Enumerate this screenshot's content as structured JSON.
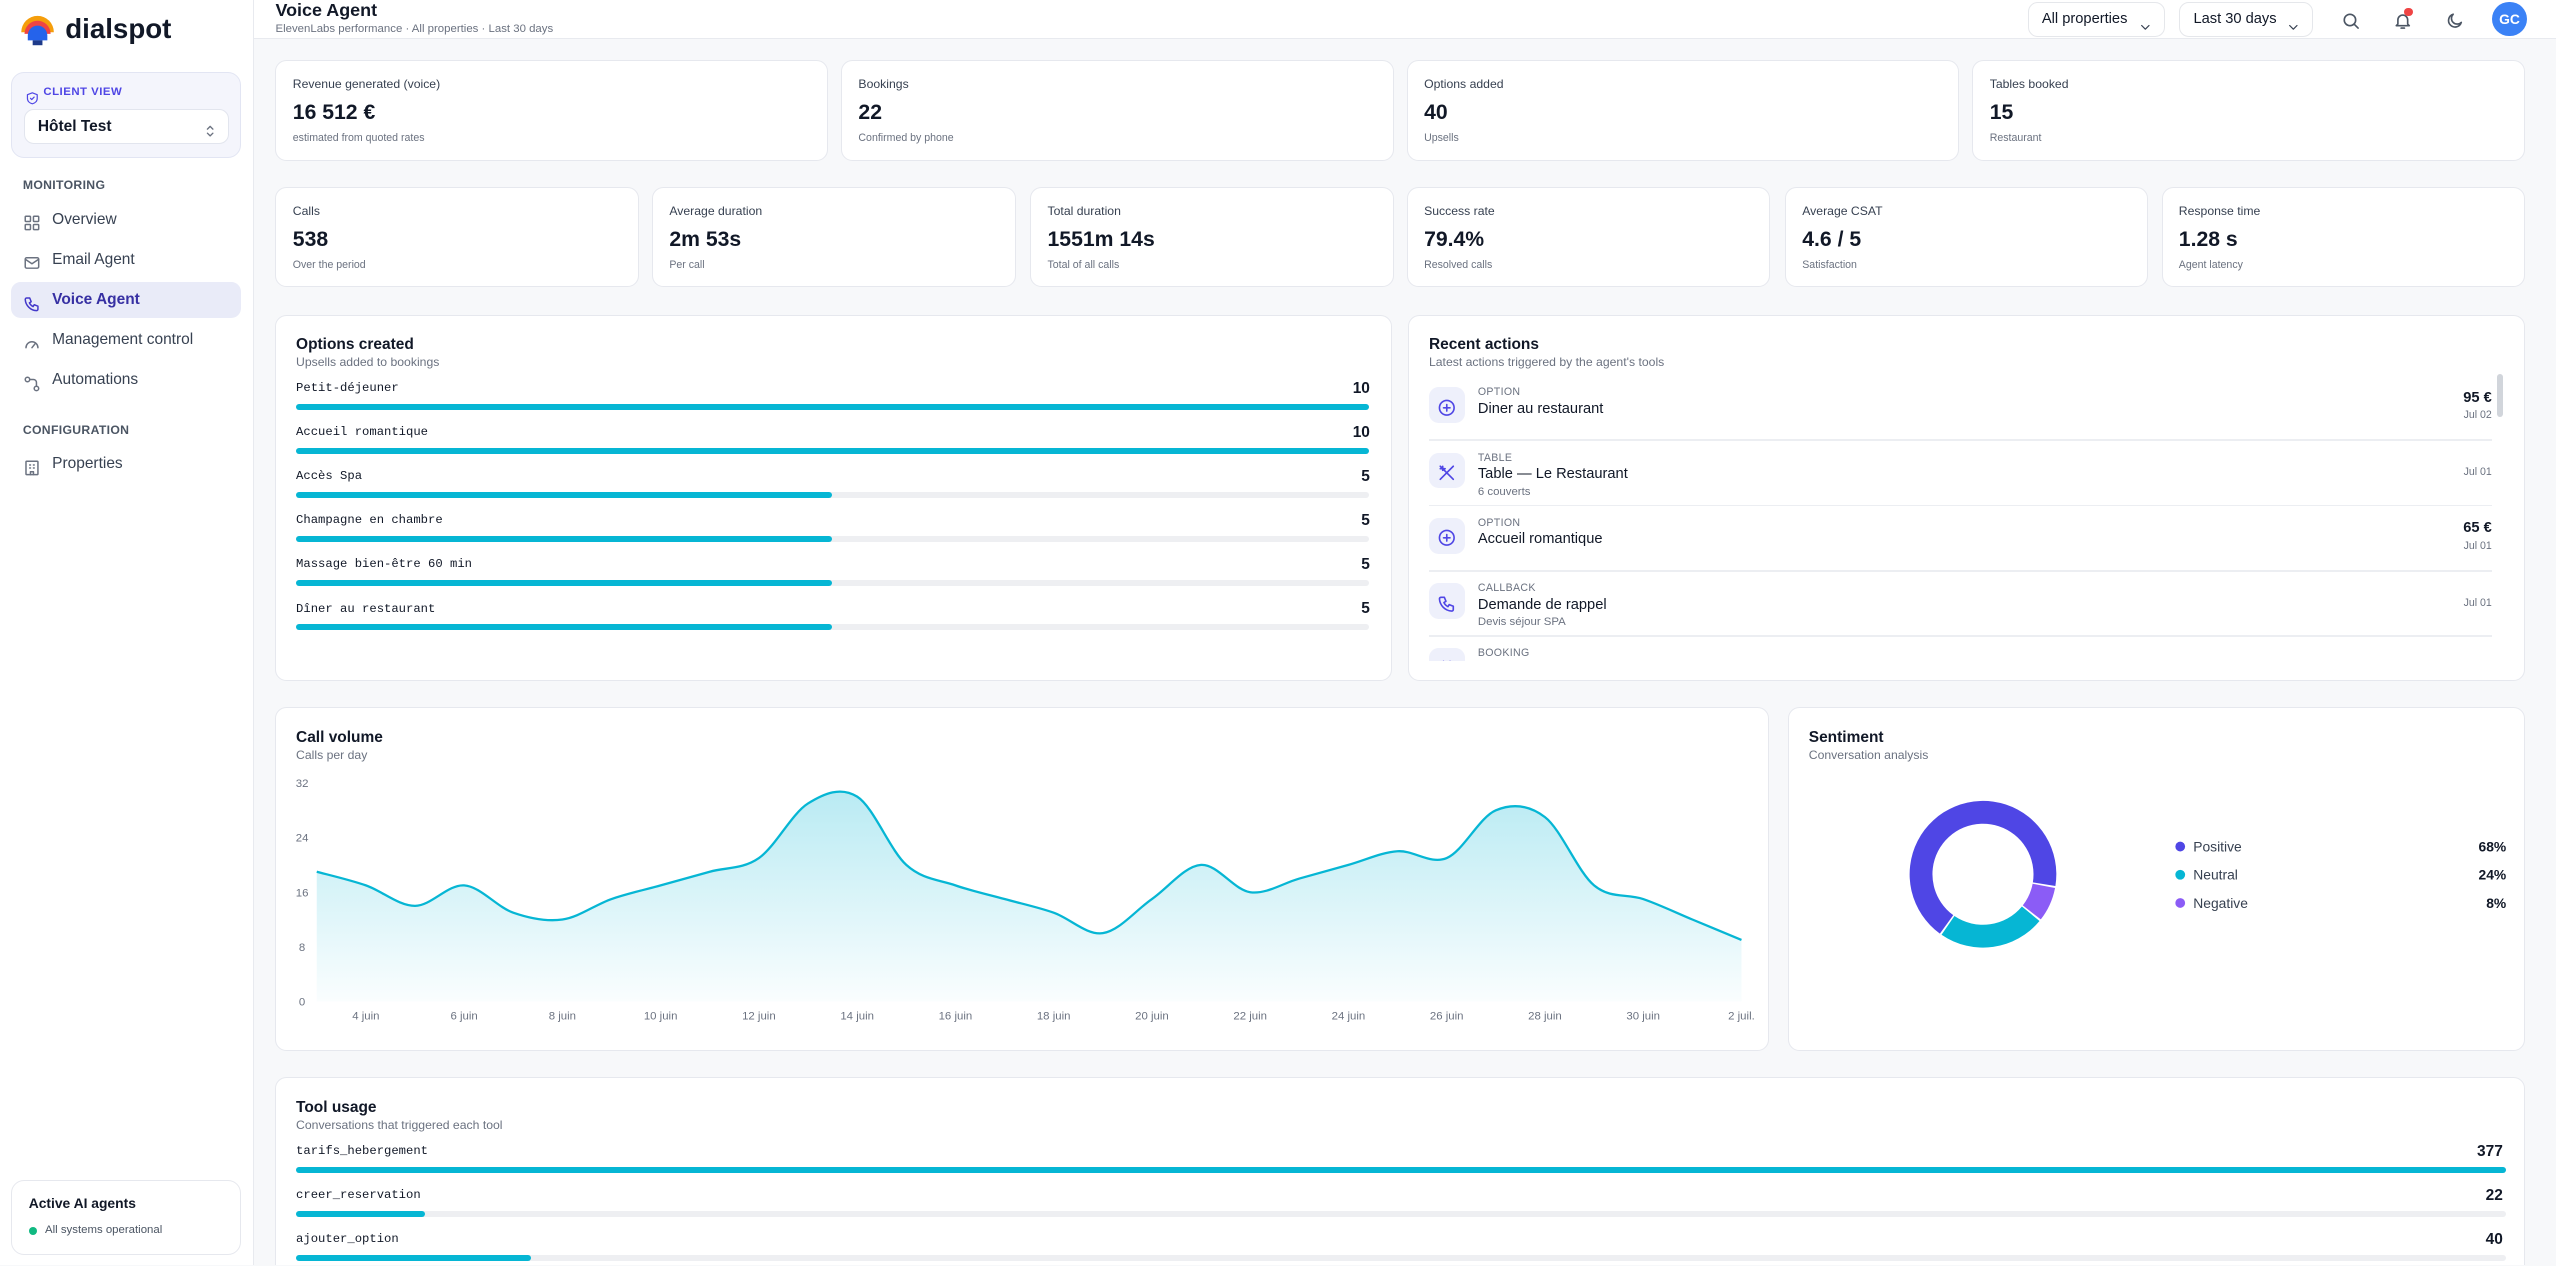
{
  "sidebar": {
    "brand": "dialspot",
    "client_view": {
      "label": "CLIENT VIEW",
      "selected": "Hôtel Test"
    },
    "sections": [
      {
        "title": "MONITORING",
        "items": [
          {
            "label": "Overview"
          },
          {
            "label": "Email Agent"
          },
          {
            "label": "Voice Agent",
            "active": true
          },
          {
            "label": "Management control"
          },
          {
            "label": "Automations"
          }
        ]
      },
      {
        "title": "CONFIGURATION",
        "items": [
          {
            "label": "Properties"
          }
        ]
      }
    ],
    "footer": {
      "title": "Active AI agents",
      "status": "All systems operational"
    }
  },
  "header": {
    "title": "Voice Agent",
    "subtitle": "ElevenLabs performance · All properties · Last 30 days",
    "filters": [
      "All properties",
      "Last 30 days"
    ],
    "avatar": "GC"
  },
  "summary_cards": [
    {
      "label": "Revenue generated (voice)",
      "value": "16 512 €",
      "note": "estimated from quoted rates"
    },
    {
      "label": "Bookings",
      "value": "22",
      "note": "Confirmed by phone"
    },
    {
      "label": "Options added",
      "value": "40",
      "note": "Upsells"
    },
    {
      "label": "Tables booked",
      "value": "15",
      "note": "Restaurant"
    }
  ],
  "metric_cards": [
    {
      "label": "Calls",
      "value": "538",
      "note": "Over the period"
    },
    {
      "label": "Average duration",
      "value": "2m 53s",
      "note": "Per call"
    },
    {
      "label": "Total duration",
      "value": "1551m 14s",
      "note": "Total of all calls"
    },
    {
      "label": "Success rate",
      "value": "79.4%",
      "note": "Resolved calls"
    },
    {
      "label": "Average CSAT",
      "value": "4.6 / 5",
      "note": "Satisfaction"
    },
    {
      "label": "Response time",
      "value": "1.28 s",
      "note": "Agent latency"
    }
  ],
  "options_created": {
    "title": "Options created",
    "subtitle": "Upsells added to bookings",
    "items": [
      {
        "name": "Petit-déjeuner",
        "value": 10
      },
      {
        "name": "Accueil romantique",
        "value": 10
      },
      {
        "name": "Accès Spa",
        "value": 5
      },
      {
        "name": "Champagne en chambre",
        "value": 5
      },
      {
        "name": "Massage bien-être 60 min",
        "value": 5
      },
      {
        "name": "Dîner au restaurant",
        "value": 5
      }
    ]
  },
  "recent_actions": {
    "title": "Recent actions",
    "subtitle": "Latest actions triggered by the agent's tools",
    "items": [
      {
        "type": "OPTION",
        "title": "Diner au restaurant",
        "amount": "95 €",
        "date": "Jul 02"
      },
      {
        "type": "TABLE",
        "title": "Table — Le Restaurant",
        "detail": "6 couverts",
        "date": "Jul 01"
      },
      {
        "type": "OPTION",
        "title": "Accueil romantique",
        "amount": "65 €",
        "date": "Jul 01"
      },
      {
        "type": "CALLBACK",
        "title": "Demande de rappel",
        "detail": "Devis séjour SPA",
        "date": "Jul 01"
      },
      {
        "type": "BOOKING"
      }
    ]
  },
  "call_volume": {
    "title": "Call volume",
    "subtitle": "Calls per day",
    "chart_data": {
      "type": "area",
      "categories": [
        null,
        "4 juin",
        null,
        "6 juin",
        null,
        "8 juin",
        null,
        "10 juin",
        null,
        "12 juin",
        null,
        "14 juin",
        null,
        "16 juin",
        null,
        "18 juin",
        null,
        "20 juin",
        null,
        "22 juin",
        null,
        "24 juin",
        null,
        "26 juin",
        null,
        "28 juin",
        null,
        "30 juin",
        null,
        "2 juil."
      ],
      "values": [
        19,
        17,
        14,
        17,
        13,
        12,
        15,
        17,
        19,
        21,
        29,
        30,
        20,
        17,
        15,
        13,
        10,
        15,
        20,
        16,
        18,
        20,
        22,
        21,
        28,
        27,
        17,
        15,
        12,
        9
      ],
      "ylim": [
        0,
        32
      ],
      "yticks": [
        0,
        8,
        16,
        24,
        32
      ],
      "color": "#06b6d4"
    }
  },
  "sentiment": {
    "title": "Sentiment",
    "subtitle": "Conversation analysis",
    "chart_data": {
      "type": "donut",
      "categories": [
        "Positive",
        "Neutral",
        "Negative"
      ],
      "values": [
        68,
        24,
        8
      ],
      "value_labels": [
        "68%",
        "24%",
        "8%"
      ],
      "colors": [
        "#4f46e5",
        "#06b6d4",
        "#8b5cf6"
      ]
    }
  },
  "tool_usage": {
    "title": "Tool usage",
    "subtitle": "Conversations that triggered each tool",
    "items": [
      {
        "name": "tarifs_hebergement",
        "value": 377
      },
      {
        "name": "creer_reservation",
        "value": 22
      },
      {
        "name": "ajouter_option",
        "value": 40
      }
    ]
  }
}
